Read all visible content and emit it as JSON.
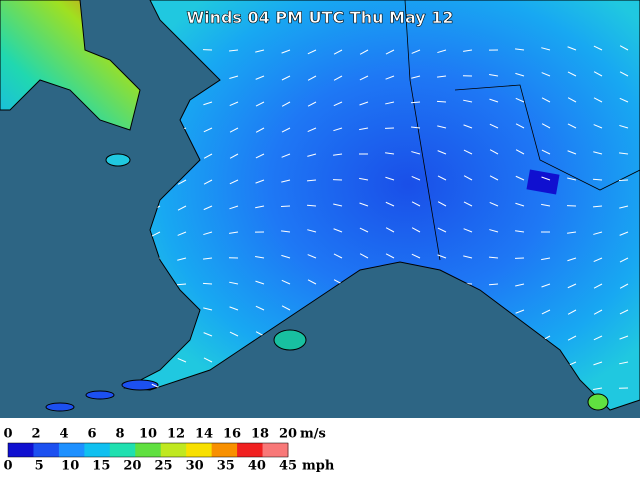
{
  "title": "Winds 04 PM UTC Thu May 12",
  "legend": {
    "ms_ticks": [
      0,
      2,
      4,
      6,
      8,
      10,
      12,
      14,
      16,
      18,
      20
    ],
    "ms_unit": "m/s",
    "mph_ticks": [
      0,
      5,
      10,
      15,
      20,
      25,
      30,
      35,
      40,
      45
    ],
    "mph_unit": "mph",
    "colors": [
      "#1010d0",
      "#1c50f0",
      "#1e90ff",
      "#10c0f0",
      "#20e0b0",
      "#60e040",
      "#c0e820",
      "#f8e000",
      "#f89000",
      "#f02020",
      "#f87878"
    ]
  }
}
